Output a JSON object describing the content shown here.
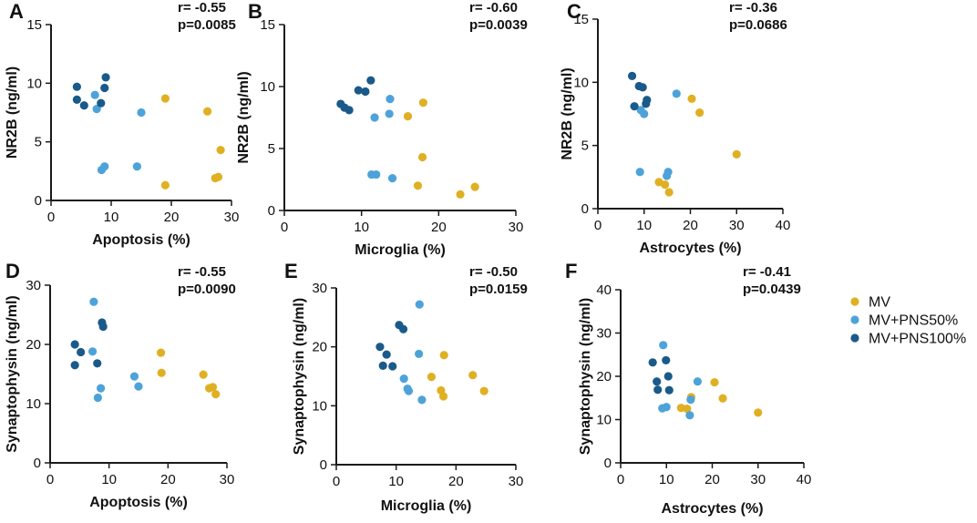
{
  "colors": {
    "MV": "#e0b023",
    "MV+PNS50%": "#4da3d9",
    "MV+PNS100%": "#1a5a8a"
  },
  "legend": {
    "items": [
      "MV",
      "MV+PNS50%",
      "MV+PNS100%"
    ]
  },
  "chart_data": [
    {
      "type": "scatter",
      "letter": "A",
      "r": "r= -0.55",
      "p": "p=0.0085",
      "xlabel": "Apoptosis (%)",
      "ylabel": "NR2B (ng/ml)",
      "xlim": [
        0,
        30
      ],
      "ylim": [
        0,
        15
      ],
      "xticks": [
        0,
        10,
        20,
        30
      ],
      "yticks": [
        0,
        5,
        10,
        15
      ],
      "series": [
        {
          "name": "MV",
          "points": [
            [
              19,
              8.7
            ],
            [
              26,
              7.6
            ],
            [
              28.2,
              4.3
            ],
            [
              19,
              1.3
            ],
            [
              27.3,
              1.9
            ],
            [
              27.8,
              2.0
            ]
          ]
        },
        {
          "name": "MV+PNS50%",
          "points": [
            [
              7.3,
              9.0
            ],
            [
              7.6,
              7.8
            ],
            [
              15,
              7.5
            ],
            [
              8.4,
              2.6
            ],
            [
              8.9,
              2.9
            ],
            [
              14.3,
              2.9
            ]
          ]
        },
        {
          "name": "MV+PNS100%",
          "points": [
            [
              4.3,
              9.7
            ],
            [
              9.1,
              10.5
            ],
            [
              8.9,
              9.6
            ],
            [
              4.3,
              8.6
            ],
            [
              5.5,
              8.1
            ],
            [
              8.3,
              8.3
            ]
          ]
        }
      ]
    },
    {
      "type": "scatter",
      "letter": "B",
      "r": "r= -0.60",
      "p": "p=0.0039",
      "xlabel": "Microglia (%)",
      "ylabel": "NR2B (ng/ml)",
      "xlim": [
        0,
        30
      ],
      "ylim": [
        0,
        15
      ],
      "xticks": [
        0,
        10,
        20,
        30
      ],
      "yticks": [
        0,
        5,
        10,
        15
      ],
      "series": [
        {
          "name": "MV",
          "points": [
            [
              18,
              8.7
            ],
            [
              16,
              7.6
            ],
            [
              17.9,
              4.3
            ],
            [
              17.3,
              2.0
            ],
            [
              24.7,
              1.9
            ],
            [
              22.8,
              1.3
            ]
          ]
        },
        {
          "name": "MV+PNS50%",
          "points": [
            [
              13.7,
              9.0
            ],
            [
              13.6,
              7.8
            ],
            [
              11.7,
              7.5
            ],
            [
              11.3,
              2.9
            ],
            [
              11.9,
              2.9
            ],
            [
              14,
              2.6
            ]
          ]
        },
        {
          "name": "MV+PNS100%",
          "points": [
            [
              11.2,
              10.5
            ],
            [
              9.6,
              9.7
            ],
            [
              10.5,
              9.6
            ],
            [
              7.3,
              8.6
            ],
            [
              7.8,
              8.3
            ],
            [
              8.4,
              8.1
            ]
          ]
        }
      ]
    },
    {
      "type": "scatter",
      "letter": "C",
      "r": "r= -0.36",
      "p": "p=0.0686",
      "xlabel": "Astrocytes (%)",
      "ylabel": "NR2B (ng/ml)",
      "xlim": [
        0,
        40
      ],
      "ylim": [
        0,
        15
      ],
      "xticks": [
        0,
        10,
        20,
        30,
        40
      ],
      "yticks": [
        0,
        5,
        10,
        15
      ],
      "series": [
        {
          "name": "MV",
          "points": [
            [
              20.3,
              8.7
            ],
            [
              22,
              7.6
            ],
            [
              30,
              4.3
            ],
            [
              13.2,
              2.1
            ],
            [
              14.5,
              1.9
            ],
            [
              15.4,
              1.3
            ]
          ]
        },
        {
          "name": "MV+PNS50%",
          "points": [
            [
              17,
              9.1
            ],
            [
              9.3,
              7.8
            ],
            [
              10,
              7.5
            ],
            [
              9.1,
              2.9
            ],
            [
              15.2,
              2.9
            ],
            [
              14.9,
              2.6
            ]
          ]
        },
        {
          "name": "MV+PNS100%",
          "points": [
            [
              7.4,
              10.5
            ],
            [
              8.9,
              9.7
            ],
            [
              9.7,
              9.6
            ],
            [
              10.6,
              8.6
            ],
            [
              10.4,
              8.3
            ],
            [
              7.9,
              8.1
            ]
          ]
        }
      ]
    },
    {
      "type": "scatter",
      "letter": "D",
      "r": "r= -0.55",
      "p": "p=0.0090",
      "xlabel": "Apoptosis (%)",
      "ylabel": "Synaptophysin (ng/ml)",
      "xlim": [
        0,
        30
      ],
      "ylim": [
        0,
        30
      ],
      "xticks": [
        0,
        10,
        20,
        30
      ],
      "yticks": [
        0,
        10,
        20,
        30
      ],
      "series": [
        {
          "name": "MV",
          "points": [
            [
              18.8,
              18.6
            ],
            [
              18.9,
              15.2
            ],
            [
              26,
              14.9
            ],
            [
              27,
              12.6
            ],
            [
              27.6,
              12.8
            ],
            [
              28.1,
              11.6
            ]
          ]
        },
        {
          "name": "MV+PNS50%",
          "points": [
            [
              7.4,
              27.2
            ],
            [
              7.2,
              18.8
            ],
            [
              14.3,
              14.6
            ],
            [
              15,
              12.9
            ],
            [
              8.6,
              12.6
            ],
            [
              8.1,
              11.0
            ]
          ]
        },
        {
          "name": "MV+PNS100%",
          "points": [
            [
              8.8,
              23.7
            ],
            [
              9,
              23.0
            ],
            [
              4.2,
              20.0
            ],
            [
              5.2,
              18.7
            ],
            [
              8,
              16.8
            ],
            [
              4.2,
              16.5
            ]
          ]
        }
      ]
    },
    {
      "type": "scatter",
      "letter": "E",
      "r": "r= -0.50",
      "p": "p=0.0159",
      "xlabel": "Microglia (%)",
      "ylabel": "Synaptophysin (ng/ml)",
      "xlim": [
        0,
        30
      ],
      "ylim": [
        0,
        30
      ],
      "xticks": [
        0,
        10,
        20,
        30
      ],
      "yticks": [
        0,
        10,
        20,
        30
      ],
      "series": [
        {
          "name": "MV",
          "points": [
            [
              18,
              18.6
            ],
            [
              22.8,
              15.2
            ],
            [
              15.9,
              14.9
            ],
            [
              17.5,
              12.6
            ],
            [
              24.7,
              12.5
            ],
            [
              17.9,
              11.6
            ]
          ]
        },
        {
          "name": "MV+PNS50%",
          "points": [
            [
              13.9,
              27.2
            ],
            [
              13.8,
              18.8
            ],
            [
              11.3,
              14.6
            ],
            [
              11.9,
              12.9
            ],
            [
              12.1,
              12.5
            ],
            [
              14.3,
              11.0
            ]
          ]
        },
        {
          "name": "MV+PNS100%",
          "points": [
            [
              10.5,
              23.7
            ],
            [
              11.2,
              23.0
            ],
            [
              7.3,
              20.0
            ],
            [
              8.4,
              18.7
            ],
            [
              7.8,
              16.8
            ],
            [
              9.4,
              16.7
            ]
          ]
        }
      ]
    },
    {
      "type": "scatter",
      "letter": "F",
      "r": "r= -0.41",
      "p": "p=0.0439",
      "xlabel": "Astrocytes (%)",
      "ylabel": "Synaptophysin (ng/ml)",
      "xlim": [
        0,
        40
      ],
      "ylim": [
        0,
        40
      ],
      "xticks": [
        0,
        10,
        20,
        30,
        40
      ],
      "yticks": [
        0,
        10,
        20,
        30,
        40
      ],
      "series": [
        {
          "name": "MV",
          "points": [
            [
              20.5,
              18.6
            ],
            [
              22.3,
              14.9
            ],
            [
              15.4,
              15.2
            ],
            [
              13.2,
              12.7
            ],
            [
              14.5,
              12.5
            ],
            [
              30,
              11.6
            ]
          ]
        },
        {
          "name": "MV+PNS50%",
          "points": [
            [
              9.3,
              27.2
            ],
            [
              16.8,
              18.8
            ],
            [
              15.3,
              14.6
            ],
            [
              9.1,
              12.6
            ],
            [
              10,
              12.9
            ],
            [
              15.1,
              11.0
            ]
          ]
        },
        {
          "name": "MV+PNS100%",
          "points": [
            [
              9.9,
              23.7
            ],
            [
              7,
              23.2
            ],
            [
              10.4,
              20.0
            ],
            [
              7.9,
              18.8
            ],
            [
              8.1,
              16.9
            ],
            [
              10.6,
              16.8
            ]
          ]
        }
      ]
    }
  ]
}
